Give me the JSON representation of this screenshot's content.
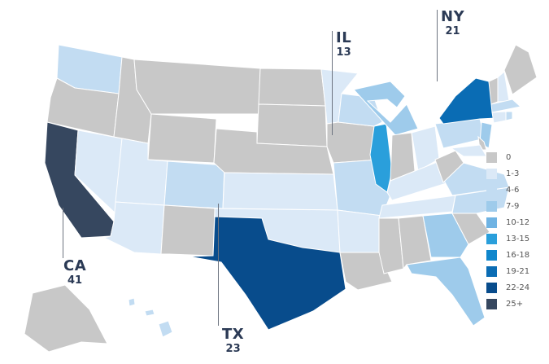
{
  "legend": [
    {
      "label": "0",
      "color": "#c8c8c8"
    },
    {
      "label": "1-3",
      "color": "#dbe9f7"
    },
    {
      "label": "4-6",
      "color": "#c2dcf2"
    },
    {
      "label": "7-9",
      "color": "#9ecbeb"
    },
    {
      "label": "10-12",
      "color": "#6fb3e3"
    },
    {
      "label": "13-15",
      "color": "#2a9fdb"
    },
    {
      "label": "16-18",
      "color": "#0f86cc"
    },
    {
      "label": "19-21",
      "color": "#0a6cb4"
    },
    {
      "label": "22-24",
      "color": "#084c8c"
    },
    {
      "label": "25+",
      "color": "#36475f"
    }
  ],
  "callouts": {
    "ca": {
      "code": "CA",
      "value": "41"
    },
    "il": {
      "code": "IL",
      "value": "13"
    },
    "ny": {
      "code": "NY",
      "value": "21"
    },
    "tx": {
      "code": "TX",
      "value": "23"
    }
  },
  "states": {
    "WA": "4-6",
    "OR": "0",
    "CA": "25+",
    "NV": "1-3",
    "ID": "0",
    "MT": "0",
    "WY": "0",
    "UT": "1-3",
    "AZ": "1-3",
    "CO": "4-6",
    "NM": "0",
    "ND": "0",
    "SD": "0",
    "NE": "0",
    "KS": "1-3",
    "OK": "1-3",
    "TX": "22-24",
    "MN": "1-3",
    "IA": "0",
    "MO": "4-6",
    "AR": "1-3",
    "LA": "0",
    "WI": "4-6",
    "IL": "13-15",
    "MI": "7-9",
    "IN": "0",
    "OH": "1-3",
    "KY": "1-3",
    "TN": "1-3",
    "MS": "0",
    "AL": "0",
    "GA": "7-9",
    "FL": "7-9",
    "SC": "0",
    "NC": "4-6",
    "VA": "4-6",
    "WV": "0",
    "PA": "4-6",
    "NY": "19-21",
    "VT": "0",
    "NH": "1-3",
    "ME": "0",
    "MA": "4-6",
    "CT": "1-3",
    "RI": "4-6",
    "NJ": "7-9",
    "DE": "0",
    "MD": "1-3",
    "AK": "0",
    "HI": "4-6"
  }
}
